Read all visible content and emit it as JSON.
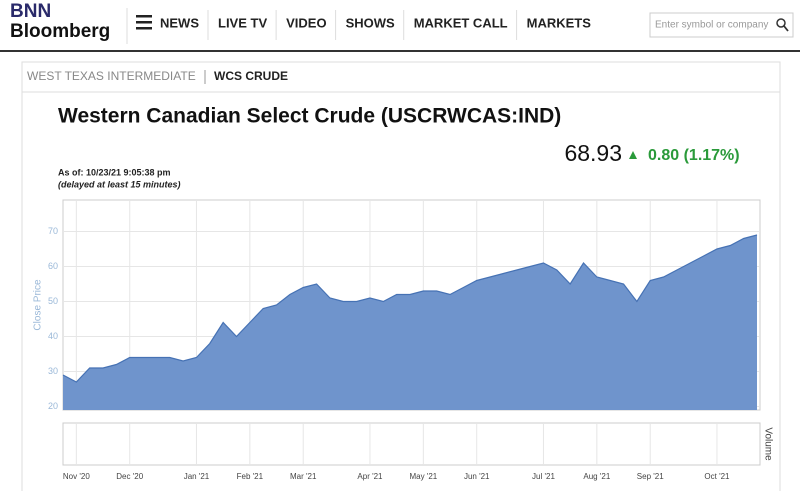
{
  "header": {
    "logo_top": "BNN",
    "logo_bottom": "Bloomberg",
    "nav": [
      "NEWS",
      "LIVE TV",
      "VIDEO",
      "SHOWS",
      "MARKET CALL",
      "MARKETS"
    ],
    "search_placeholder": "Enter symbol or company"
  },
  "tabs": [
    "WEST TEXAS INTERMEDIATE",
    "WCS CRUDE"
  ],
  "quote": {
    "title": "Western Canadian Select Crude (USCRWCAS:IND)",
    "price": "68.93",
    "change": "0.80 (1.17%)",
    "as_of": "As of: 10/23/21 9:05:38 pm",
    "delay": "(delayed at least 15 minutes)"
  },
  "chart_data": {
    "type": "area",
    "y_label": "Close Price",
    "volume_label": "Volume",
    "color": "#6f94cc",
    "line_color": "#4672b4",
    "grid": true,
    "categories": [
      null,
      "Nov '20",
      null,
      null,
      null,
      "Dec '20",
      null,
      null,
      null,
      null,
      "Jan '21",
      null,
      null,
      null,
      "Feb '21",
      null,
      null,
      null,
      "Mar '21",
      null,
      null,
      null,
      null,
      "Apr '21",
      null,
      null,
      null,
      "May '21",
      null,
      null,
      null,
      "Jun '21",
      null,
      null,
      null,
      null,
      "Jul '21",
      null,
      null,
      null,
      "Aug '21",
      null,
      null,
      null,
      "Sep '21",
      null,
      null,
      null,
      null,
      "Oct '21",
      null,
      null,
      null
    ],
    "values": [
      29,
      27,
      31,
      31,
      32,
      34,
      34,
      34,
      34,
      33,
      34,
      38,
      44,
      40,
      44,
      48,
      49,
      52,
      54,
      55,
      51,
      50,
      50,
      51,
      50,
      52,
      52,
      53,
      53,
      52,
      54,
      56,
      57,
      58,
      59,
      60,
      61,
      59,
      55,
      61,
      57,
      56,
      55,
      50,
      56,
      57,
      59,
      61,
      63,
      65,
      66,
      68,
      69
    ],
    "ylim": [
      19,
      79
    ],
    "yticks": [
      20,
      30,
      40,
      50,
      60,
      70
    ]
  }
}
